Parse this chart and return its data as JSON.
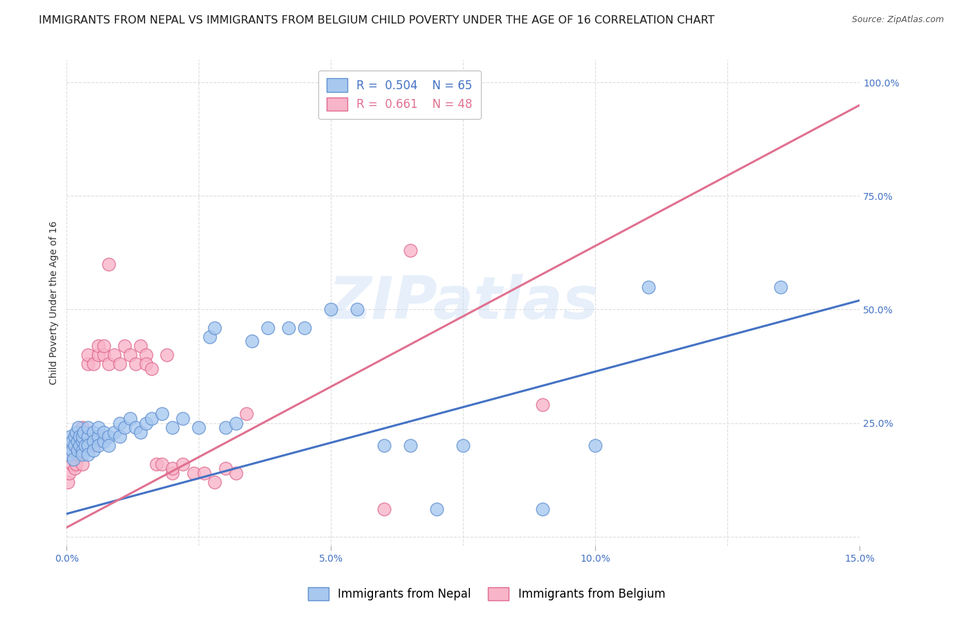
{
  "title": "IMMIGRANTS FROM NEPAL VS IMMIGRANTS FROM BELGIUM CHILD POVERTY UNDER THE AGE OF 16 CORRELATION CHART",
  "source": "Source: ZipAtlas.com",
  "ylabel": "Child Poverty Under the Age of 16",
  "xlim": [
    0.0,
    0.15
  ],
  "ylim": [
    -0.02,
    1.05
  ],
  "xticks": [
    0.0,
    0.05,
    0.1,
    0.15
  ],
  "xticklabels": [
    "0.0%",
    "5.0%",
    "10.0%",
    "15.0%"
  ],
  "yticks_right": [
    0.25,
    0.5,
    0.75,
    1.0
  ],
  "yticklabels_right": [
    "25.0%",
    "50.0%",
    "75.0%",
    "100.0%"
  ],
  "nepal_color": "#A8C8F0",
  "belgium_color": "#F8B4C8",
  "nepal_edge_color": "#6090D0",
  "belgium_edge_color": "#E06890",
  "line_nepal_color": "#4472C4",
  "line_belgium_color": "#E07090",
  "nepal_R": 0.504,
  "nepal_N": 65,
  "belgium_R": 0.661,
  "belgium_N": 48,
  "nepal_line_x": [
    0.0,
    0.15
  ],
  "nepal_line_y": [
    0.05,
    0.52
  ],
  "belgium_line_x": [
    0.0,
    0.15
  ],
  "belgium_line_y": [
    0.02,
    0.95
  ],
  "nepal_scatter_x": [
    0.0002,
    0.0005,
    0.0008,
    0.001,
    0.001,
    0.0012,
    0.0015,
    0.0015,
    0.0018,
    0.002,
    0.002,
    0.0022,
    0.0025,
    0.0025,
    0.003,
    0.003,
    0.003,
    0.003,
    0.0032,
    0.0035,
    0.004,
    0.004,
    0.004,
    0.004,
    0.005,
    0.005,
    0.005,
    0.006,
    0.006,
    0.006,
    0.007,
    0.007,
    0.008,
    0.008,
    0.009,
    0.01,
    0.01,
    0.011,
    0.012,
    0.013,
    0.014,
    0.015,
    0.016,
    0.018,
    0.02,
    0.022,
    0.025,
    0.027,
    0.028,
    0.03,
    0.032,
    0.035,
    0.038,
    0.042,
    0.045,
    0.05,
    0.055,
    0.06,
    0.065,
    0.07,
    0.075,
    0.09,
    0.1,
    0.11,
    0.135
  ],
  "nepal_scatter_y": [
    0.2,
    0.18,
    0.22,
    0.19,
    0.21,
    0.17,
    0.22,
    0.2,
    0.23,
    0.21,
    0.19,
    0.24,
    0.2,
    0.22,
    0.21,
    0.19,
    0.18,
    0.22,
    0.23,
    0.2,
    0.22,
    0.2,
    0.24,
    0.18,
    0.23,
    0.21,
    0.19,
    0.22,
    0.2,
    0.24,
    0.21,
    0.23,
    0.22,
    0.2,
    0.23,
    0.25,
    0.22,
    0.24,
    0.26,
    0.24,
    0.23,
    0.25,
    0.26,
    0.27,
    0.24,
    0.26,
    0.24,
    0.44,
    0.46,
    0.24,
    0.25,
    0.43,
    0.46,
    0.46,
    0.46,
    0.5,
    0.5,
    0.2,
    0.2,
    0.06,
    0.2,
    0.06,
    0.2,
    0.55,
    0.55
  ],
  "belgium_scatter_x": [
    0.0002,
    0.0005,
    0.001,
    0.001,
    0.0012,
    0.0015,
    0.0018,
    0.002,
    0.002,
    0.0022,
    0.0025,
    0.003,
    0.003,
    0.003,
    0.004,
    0.004,
    0.005,
    0.005,
    0.006,
    0.006,
    0.007,
    0.007,
    0.008,
    0.008,
    0.009,
    0.01,
    0.011,
    0.012,
    0.013,
    0.014,
    0.015,
    0.015,
    0.016,
    0.017,
    0.018,
    0.019,
    0.02,
    0.02,
    0.022,
    0.024,
    0.026,
    0.028,
    0.03,
    0.032,
    0.034,
    0.06,
    0.065,
    0.09
  ],
  "belgium_scatter_y": [
    0.12,
    0.14,
    0.16,
    0.18,
    0.2,
    0.15,
    0.16,
    0.22,
    0.18,
    0.22,
    0.2,
    0.24,
    0.2,
    0.16,
    0.38,
    0.4,
    0.38,
    0.2,
    0.4,
    0.42,
    0.4,
    0.42,
    0.38,
    0.6,
    0.4,
    0.38,
    0.42,
    0.4,
    0.38,
    0.42,
    0.4,
    0.38,
    0.37,
    0.16,
    0.16,
    0.4,
    0.14,
    0.15,
    0.16,
    0.14,
    0.14,
    0.12,
    0.15,
    0.14,
    0.27,
    0.06,
    0.63,
    0.29
  ],
  "watermark": "ZIPatlas",
  "background_color": "#FFFFFF",
  "grid_color": "#DDDDDD",
  "title_fontsize": 11.5,
  "axis_label_fontsize": 10,
  "tick_fontsize": 10,
  "legend_fontsize": 12
}
